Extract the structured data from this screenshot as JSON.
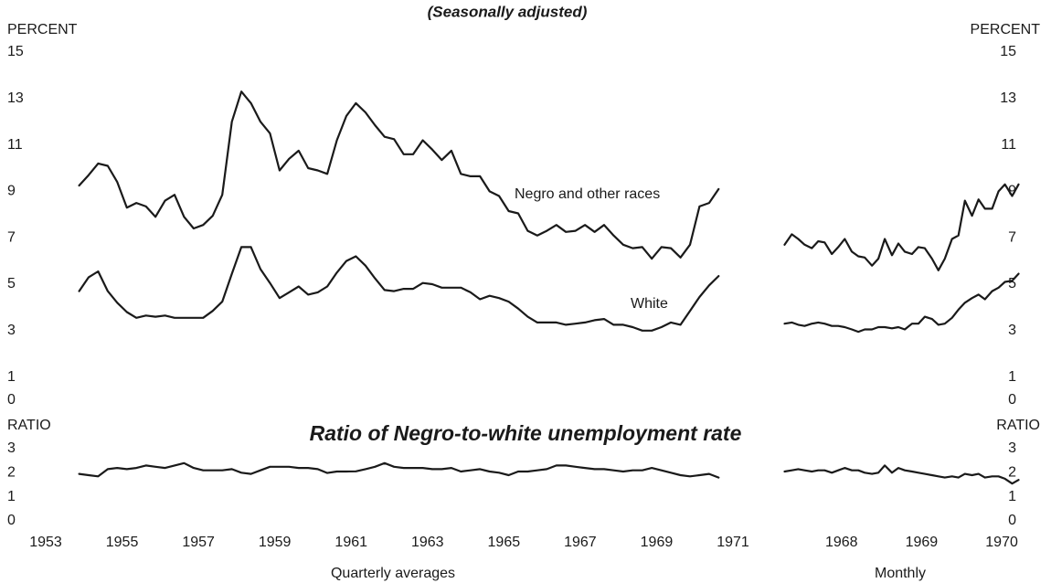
{
  "title": "(Seasonally adjusted)",
  "subtitle": "Ratio of Negro-to-white unemployment rate",
  "chart_data": [
    {
      "type": "line",
      "xlabel": "Quarterly averages",
      "ylabel": "PERCENT",
      "y2label": "RATIO",
      "x": [
        1953.875,
        1954.125,
        1954.375,
        1954.625,
        1954.875,
        1955.125,
        1955.375,
        1955.625,
        1955.875,
        1956.125,
        1956.375,
        1956.625,
        1956.875,
        1957.125,
        1957.375,
        1957.625,
        1957.875,
        1958.125,
        1958.375,
        1958.625,
        1958.875,
        1959.125,
        1959.375,
        1959.625,
        1959.875,
        1960.125,
        1960.375,
        1960.625,
        1960.875,
        1961.125,
        1961.375,
        1961.625,
        1961.875,
        1962.125,
        1962.375,
        1962.625,
        1962.875,
        1963.125,
        1963.375,
        1963.625,
        1963.875,
        1964.125,
        1964.375,
        1964.625,
        1964.875,
        1965.125,
        1965.375,
        1965.625,
        1965.875,
        1966.125,
        1966.375,
        1966.625,
        1966.875,
        1967.125,
        1967.375,
        1967.625,
        1967.875,
        1968.125,
        1968.375,
        1968.625,
        1968.875,
        1969.125,
        1969.375,
        1969.625,
        1969.875,
        1970.125,
        1970.375,
        1970.625
      ],
      "xlim": [
        1953,
        1971
      ],
      "xticks": [
        1953,
        1955,
        1957,
        1959,
        1961,
        1963,
        1965,
        1967,
        1969,
        1971
      ],
      "ylim": [
        0,
        15
      ],
      "yticks": [
        0,
        1,
        3,
        5,
        7,
        9,
        11,
        13,
        15
      ],
      "y2lim": [
        0,
        3
      ],
      "y2ticks": [
        0,
        1,
        2,
        3
      ],
      "series": [
        {
          "name": "Negro and other races",
          "color": "#1a1a1a",
          "values": [
            9.25,
            9.7,
            10.2,
            10.1,
            9.4,
            8.3,
            8.5,
            8.35,
            7.9,
            8.6,
            8.85,
            7.9,
            7.4,
            7.55,
            7.95,
            8.85,
            12.0,
            13.3,
            12.8,
            12.0,
            11.5,
            9.9,
            10.4,
            10.75,
            10.0,
            9.9,
            9.75,
            11.2,
            12.25,
            12.8,
            12.4,
            11.85,
            11.35,
            11.25,
            10.6,
            10.6,
            11.2,
            10.8,
            10.35,
            10.75,
            9.75,
            9.65,
            9.65,
            9.0,
            8.8,
            8.15,
            8.05,
            7.3,
            7.1,
            7.3,
            7.55,
            7.25,
            7.3,
            7.55,
            7.25,
            7.55,
            7.1,
            6.7,
            6.55,
            6.6,
            6.1,
            6.6,
            6.55,
            6.15,
            6.7,
            8.35,
            8.5,
            9.1
          ]
        },
        {
          "name": "White",
          "color": "#1a1a1a",
          "values": [
            4.7,
            5.3,
            5.55,
            4.7,
            4.2,
            3.8,
            3.55,
            3.65,
            3.6,
            3.65,
            3.55,
            3.55,
            3.55,
            3.55,
            3.85,
            4.25,
            5.45,
            6.6,
            6.6,
            5.65,
            5.05,
            4.4,
            4.65,
            4.9,
            4.55,
            4.65,
            4.9,
            5.5,
            6.0,
            6.2,
            5.8,
            5.25,
            4.75,
            4.7,
            4.8,
            4.8,
            5.05,
            5.0,
            4.85,
            4.85,
            4.85,
            4.65,
            4.35,
            4.5,
            4.4,
            4.25,
            3.95,
            3.6,
            3.35,
            3.35,
            3.35,
            3.25,
            3.3,
            3.35,
            3.45,
            3.5,
            3.25,
            3.25,
            3.15,
            3.0,
            3.0,
            3.15,
            3.35,
            3.25,
            3.85,
            4.45,
            4.95,
            5.35
          ]
        },
        {
          "axis": "y2",
          "color": "#1a1a1a",
          "values": [
            1.95,
            1.9,
            1.85,
            2.15,
            2.2,
            2.15,
            2.2,
            2.3,
            2.25,
            2.2,
            2.3,
            2.4,
            2.2,
            2.1,
            2.1,
            2.1,
            2.15,
            2.0,
            1.95,
            2.1,
            2.25,
            2.25,
            2.25,
            2.2,
            2.2,
            2.15,
            1.99,
            2.05,
            2.05,
            2.06,
            2.15,
            2.25,
            2.4,
            2.25,
            2.2,
            2.2,
            2.2,
            2.15,
            2.15,
            2.2,
            2.05,
            2.1,
            2.15,
            2.05,
            2.0,
            1.9,
            2.05,
            2.05,
            2.1,
            2.15,
            2.3,
            2.3,
            2.25,
            2.2,
            2.15,
            2.15,
            2.1,
            2.05,
            2.1,
            2.1,
            2.2,
            2.1,
            2.0,
            1.9,
            1.85,
            1.9,
            1.95,
            1.8
          ]
        }
      ]
    },
    {
      "type": "line",
      "xlabel": "Monthly",
      "ylabel": "PERCENT",
      "y2label": "RATIO",
      "x": [
        1967.79,
        1967.88,
        1967.96,
        1968.04,
        1968.13,
        1968.21,
        1968.29,
        1968.38,
        1968.46,
        1968.54,
        1968.63,
        1968.71,
        1968.79,
        1968.88,
        1968.96,
        1969.04,
        1969.13,
        1969.21,
        1969.29,
        1969.38,
        1969.46,
        1969.54,
        1969.63,
        1969.71,
        1969.79,
        1969.88,
        1969.96,
        1970.04,
        1970.13,
        1970.21,
        1970.29,
        1970.38,
        1970.46,
        1970.54,
        1970.63,
        1970.71
      ],
      "xlim": [
        1967.75,
        1970.75
      ],
      "xticks": [
        {
          "value": 1968.5,
          "label": "1968"
        },
        {
          "value": 1969.5,
          "label": "1969"
        },
        {
          "value": 1970.5,
          "label": "1970"
        }
      ],
      "ylim": [
        0,
        15
      ],
      "yticks": [
        0,
        1,
        3,
        5,
        7,
        9,
        11,
        13,
        15
      ],
      "y2lim": [
        0,
        3
      ],
      "y2ticks": [
        0,
        1,
        2,
        3
      ],
      "series": [
        {
          "color": "#1a1a1a",
          "values": [
            6.7,
            7.15,
            6.95,
            6.7,
            6.55,
            6.85,
            6.8,
            6.3,
            6.6,
            6.95,
            6.4,
            6.2,
            6.15,
            5.8,
            6.1,
            6.95,
            6.25,
            6.75,
            6.4,
            6.3,
            6.6,
            6.55,
            6.1,
            5.6,
            6.1,
            6.95,
            7.1,
            8.6,
            7.95,
            8.65,
            8.25,
            8.25,
            9.0,
            9.3,
            8.8,
            9.3
          ]
        },
        {
          "color": "#1a1a1a",
          "values": [
            3.3,
            3.35,
            3.25,
            3.2,
            3.3,
            3.35,
            3.3,
            3.2,
            3.2,
            3.15,
            3.05,
            2.95,
            3.05,
            3.05,
            3.15,
            3.15,
            3.1,
            3.15,
            3.05,
            3.3,
            3.3,
            3.6,
            3.5,
            3.25,
            3.3,
            3.55,
            3.9,
            4.2,
            4.4,
            4.55,
            4.35,
            4.7,
            4.85,
            5.1,
            5.15,
            5.45
          ]
        },
        {
          "axis": "y2",
          "color": "#1a1a1a",
          "values": [
            2.05,
            2.1,
            2.15,
            2.1,
            2.05,
            2.1,
            2.1,
            2.0,
            2.1,
            2.2,
            2.1,
            2.1,
            2.0,
            1.95,
            2.0,
            2.3,
            2.0,
            2.2,
            2.1,
            2.05,
            2.0,
            1.95,
            1.9,
            1.85,
            1.8,
            1.85,
            1.8,
            1.95,
            1.9,
            1.95,
            1.8,
            1.85,
            1.85,
            1.75,
            1.55,
            1.7
          ]
        }
      ]
    }
  ]
}
